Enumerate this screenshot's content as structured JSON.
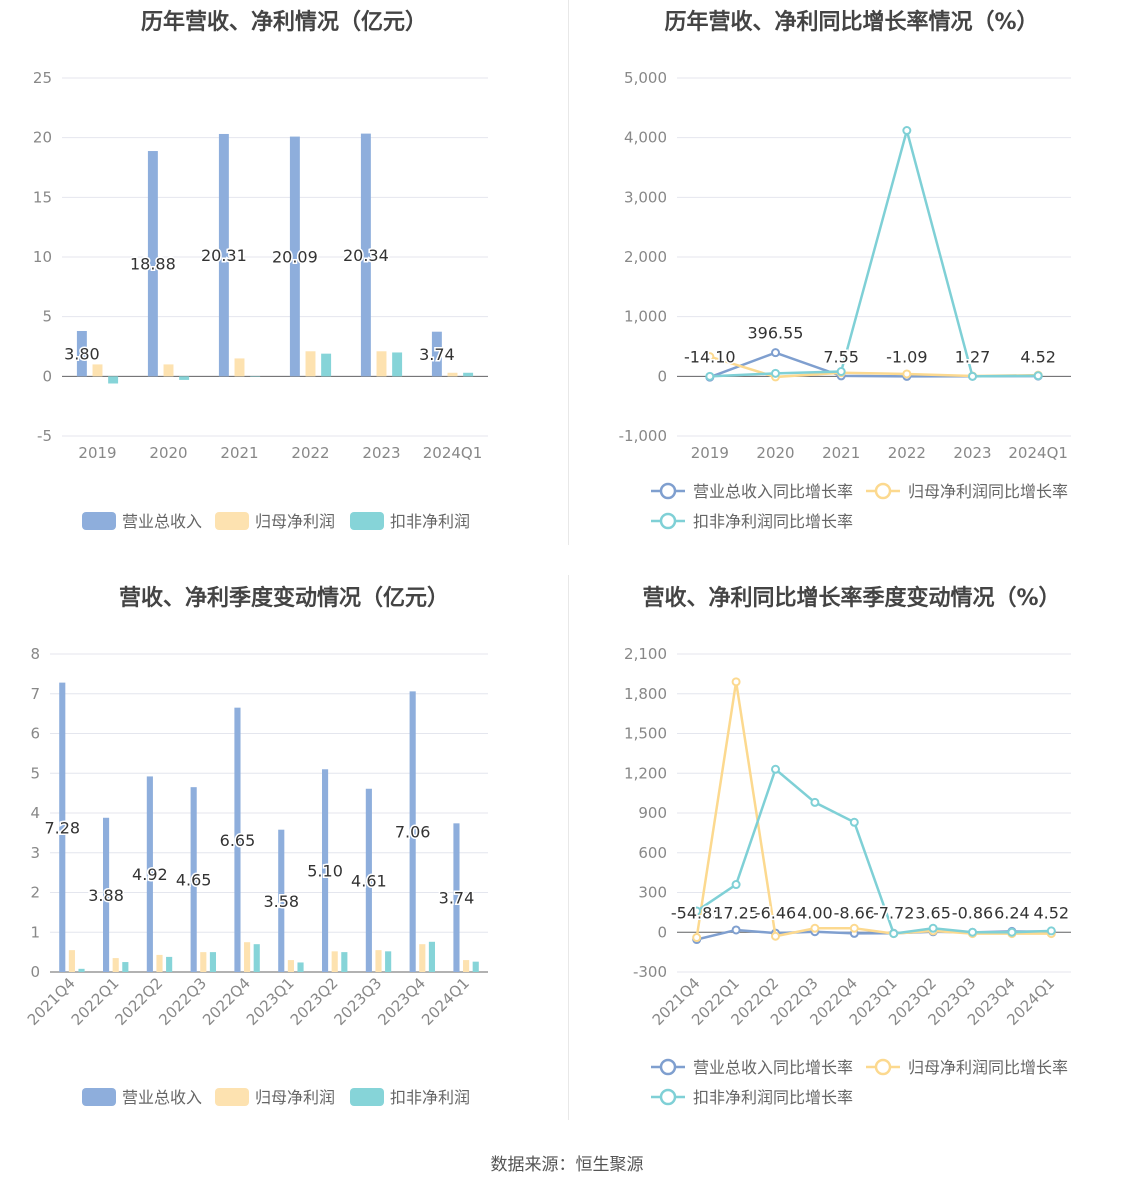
{
  "source_label": "数据来源：恒生聚源",
  "colors": {
    "revenue": "#8eaedc",
    "net_profit": "#fde2b0",
    "deducted": "#86d4d8",
    "line_rev": "#7f9fcf",
    "line_np": "#fcd98f",
    "line_ded": "#7fd0d6",
    "grid": "#e4e6ee",
    "axis_text": "#888888"
  },
  "chart_data": [
    {
      "id": "annual_amount",
      "type": "bar",
      "title": "历年营收、净利情况（亿元）",
      "categories": [
        "2019",
        "2020",
        "2021",
        "2022",
        "2023",
        "2024Q1"
      ],
      "ylim": [
        -5,
        25
      ],
      "yticks": [
        "25",
        "20",
        "15",
        "10",
        "5",
        "0",
        "-5"
      ],
      "series": [
        {
          "name": "营业总收入",
          "values": [
            3.8,
            18.88,
            20.31,
            20.09,
            20.34,
            3.74
          ]
        },
        {
          "name": "归母净利润",
          "values": [
            1.0,
            1.0,
            1.5,
            2.1,
            2.1,
            0.3
          ]
        },
        {
          "name": "扣非净利润",
          "values": [
            -0.6,
            -0.3,
            0,
            1.9,
            2.0,
            0.3
          ]
        }
      ],
      "data_labels": [
        "3.80",
        "18.88",
        "20.31",
        "20.09",
        "20.34",
        "3.74"
      ],
      "legend": [
        "营业总收入",
        "归母净利润",
        "扣非净利润"
      ]
    },
    {
      "id": "annual_growth",
      "type": "line",
      "title": "历年营收、净利同比增长率情况（%）",
      "categories": [
        "2019",
        "2020",
        "2021",
        "2022",
        "2023",
        "2024Q1"
      ],
      "ylim": [
        -1000,
        5000
      ],
      "yticks": [
        "5,000",
        "4,000",
        "3,000",
        "2,000",
        "1,000",
        "0",
        "-1,000"
      ],
      "series": [
        {
          "name": "营业总收入同比增长率",
          "values": [
            -14.1,
            396.55,
            7.55,
            -1.09,
            1.27,
            4.52
          ]
        },
        {
          "name": "归母净利润同比增长率",
          "values": [
            330,
            -10,
            60,
            40,
            5,
            20
          ]
        },
        {
          "name": "扣非净利润同比增长率",
          "values": [
            0,
            50,
            80,
            4120,
            0,
            10
          ]
        }
      ],
      "data_labels": [
        "-14.10",
        "396.55",
        "7.55",
        "-1.09",
        "1.27",
        "4.52"
      ],
      "legend": [
        "营业总收入同比增长率",
        "归母净利润同比增长率",
        "扣非净利润同比增长率"
      ]
    },
    {
      "id": "quarterly_amount",
      "type": "bar",
      "title": "营收、净利季度变动情况（亿元）",
      "categories": [
        "2021Q4",
        "2022Q1",
        "2022Q2",
        "2022Q3",
        "2022Q4",
        "2023Q1",
        "2023Q2",
        "2023Q3",
        "2023Q4",
        "2024Q1"
      ],
      "ylim": [
        0,
        8
      ],
      "yticks": [
        "8",
        "7",
        "6",
        "5",
        "4",
        "3",
        "2",
        "1",
        "0"
      ],
      "series": [
        {
          "name": "营业总收入",
          "values": [
            7.28,
            3.88,
            4.92,
            4.65,
            6.65,
            3.58,
            5.1,
            4.61,
            7.06,
            3.74
          ]
        },
        {
          "name": "归母净利润",
          "values": [
            0.55,
            0.35,
            0.43,
            0.5,
            0.75,
            0.3,
            0.52,
            0.55,
            0.7,
            0.3
          ]
        },
        {
          "name": "扣非净利润",
          "values": [
            0.08,
            0.25,
            0.38,
            0.5,
            0.7,
            0.24,
            0.5,
            0.52,
            0.76,
            0.26
          ]
        }
      ],
      "data_labels": [
        "7.28",
        "3.88",
        "4.92",
        "4.65",
        "6.65",
        "3.58",
        "5.10",
        "4.61",
        "7.06",
        "3.74"
      ],
      "legend": [
        "营业总收入",
        "归母净利润",
        "扣非净利润"
      ]
    },
    {
      "id": "quarterly_growth",
      "type": "line",
      "title": "营收、净利同比增长率季度变动情况（%）",
      "categories": [
        "2021Q4",
        "2022Q1",
        "2022Q2",
        "2022Q3",
        "2022Q4",
        "2023Q1",
        "2023Q2",
        "2023Q3",
        "2023Q4",
        "2024Q1"
      ],
      "ylim": [
        -300,
        2100
      ],
      "yticks": [
        "2,100",
        "1,800",
        "1,500",
        "1,200",
        "900",
        "600",
        "300",
        "0",
        "-300"
      ],
      "series": [
        {
          "name": "营业总收入同比增长率",
          "values": [
            -54.85,
            17.25,
            -6.46,
            4.0,
            -8.66,
            -7.72,
            3.65,
            -0.86,
            6.24,
            4.52
          ]
        },
        {
          "name": "归母净利润同比增长率",
          "values": [
            -40,
            1890,
            -30,
            30,
            30,
            -10,
            10,
            -10,
            -10,
            -10
          ]
        },
        {
          "name": "扣非净利润同比增长率",
          "values": [
            160,
            360,
            1230,
            980,
            830,
            -10,
            30,
            0,
            0,
            10
          ]
        }
      ],
      "data_labels": [
        "-54.85",
        "17.25",
        "-6.46",
        "4.00",
        "-8.66",
        "-7.72",
        "3.65",
        "-0.86",
        "6.24",
        "4.52"
      ],
      "legend": [
        "营业总收入同比增长率",
        "归母净利润同比增长率",
        "扣非净利润同比增长率"
      ]
    }
  ]
}
